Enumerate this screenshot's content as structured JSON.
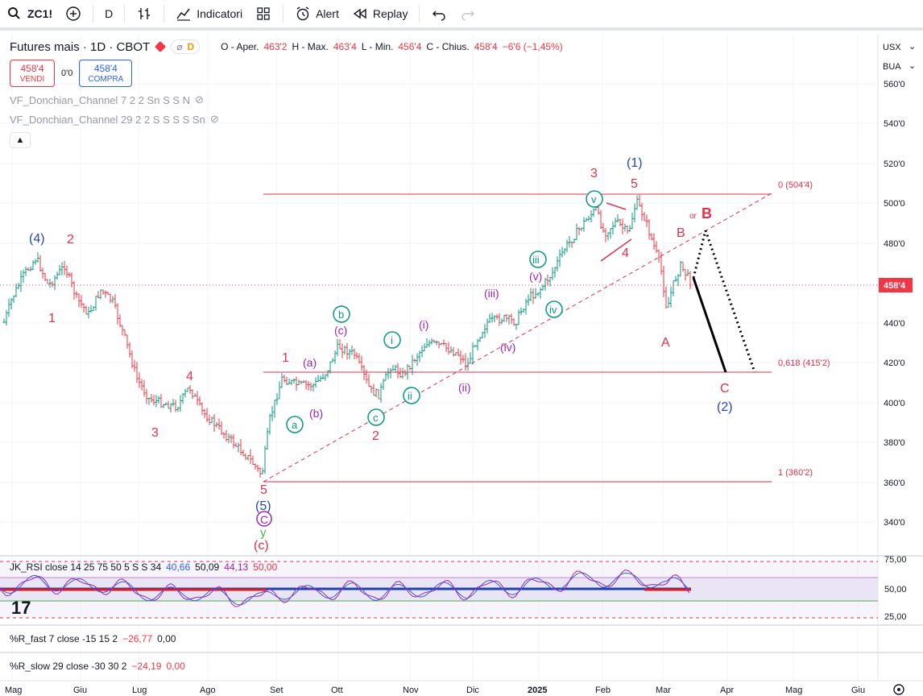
{
  "toolbar": {
    "symbol": "ZC1!",
    "interval": "D",
    "indicators_label": "Indicatori",
    "alert_label": "Alert",
    "replay_label": "Replay"
  },
  "legend": {
    "title": "Futures mais · 1D · CBOT",
    "pill_d": "D",
    "open_label": "O - Aper.",
    "open": "463'2",
    "high_label": "H - Max.",
    "high": "463'4",
    "low_label": "L - Min.",
    "low": "456'4",
    "close_label": "C - Chius.",
    "close": "458'4",
    "change": "−6'6 (−1,45%)",
    "sell_price": "458'4",
    "sell_label": "VENDI",
    "spread": "0'0",
    "buy_price": "458'4",
    "buy_label": "COMPRA",
    "indicator1": "VF_Donchian_Channel 7 2 2 Sn S S N",
    "indicator2": "VF_Donchian_Channel 29 2 2 S S S S Sn"
  },
  "price_scale": {
    "currency": "USX",
    "unit": "BUA",
    "ticks": [
      "560'0",
      "540'0",
      "520'0",
      "500'0",
      "480'0",
      "460'0",
      "440'0",
      "420'0",
      "400'0",
      "380'0",
      "360'0",
      "340'0"
    ],
    "last_price": "458'4"
  },
  "fib_levels": [
    {
      "label": "0 (504'4)"
    },
    {
      "label": "0,618 (415'2)"
    },
    {
      "label": "1 (360'2)"
    }
  ],
  "time_axis": [
    "Mag",
    "Giu",
    "Lug",
    "Ago",
    "Set",
    "Ott",
    "Nov",
    "Dic",
    "2025",
    "Feb",
    "Mar",
    "Apr",
    "Mag",
    "Giu"
  ],
  "rsi_pane": {
    "label": "JK_RSI close 14 25 75 50 5 S S 34",
    "v1": "40,66",
    "v2": "50,09",
    "v3": "44,13",
    "v4": "50,00",
    "ticks": [
      "75,00",
      "50,00",
      "25,00"
    ]
  },
  "rfast_pane": {
    "label": "%R_fast 7 close -15 15 2",
    "v1": "−26,77",
    "v2": "0,00"
  },
  "rslow_pane": {
    "label": "%R_slow 29 close -30 30 2",
    "v1": "−24,19",
    "v2": "0,00"
  },
  "wave_labels": {
    "red": [
      "2",
      "1",
      "4",
      "3",
      "5",
      "(c)",
      "1",
      "2",
      "3",
      "4",
      "5",
      "A",
      "B",
      "B",
      "C"
    ],
    "or": "or",
    "blue": [
      "(4)",
      "(5)",
      "(1)",
      "(2)"
    ],
    "purple": [
      "(a)",
      "(b)",
      "(c)",
      "(i)",
      "(ii)",
      "(iii)",
      "(iv)",
      "(v)",
      "C"
    ],
    "green": [
      "y"
    ],
    "teal": [
      "a",
      "b",
      "c",
      "i",
      "ii",
      "iii",
      "iv",
      "v"
    ]
  },
  "colors": {
    "bull": "#089981",
    "bear": "#f23645",
    "fib": "#e0304a",
    "wave_blue": "#2447b8",
    "purple": "#9c27b0"
  }
}
